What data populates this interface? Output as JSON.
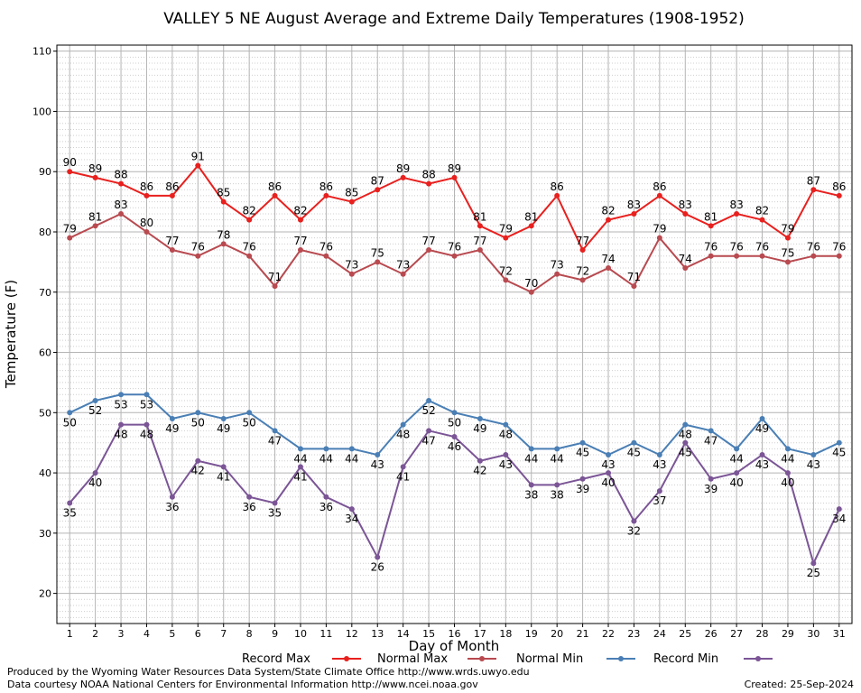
{
  "chart_data": {
    "type": "line",
    "title": "VALLEY 5 NE August Average and Extreme Daily Temperatures (1908-1952)",
    "xlabel": "Day of Month",
    "ylabel": "Temperature (F)",
    "xlim": [
      0.5,
      31.5
    ],
    "ylim": [
      15,
      111
    ],
    "yticks": [
      20,
      30,
      40,
      50,
      60,
      70,
      80,
      90,
      100,
      110
    ],
    "x": [
      1,
      2,
      3,
      4,
      5,
      6,
      7,
      8,
      9,
      10,
      11,
      12,
      13,
      14,
      15,
      16,
      17,
      18,
      19,
      20,
      21,
      22,
      23,
      24,
      25,
      26,
      27,
      28,
      29,
      30,
      31
    ],
    "grid": true,
    "legend_position": "bottom",
    "series": [
      {
        "name": "Record Max",
        "color": "#e8201e",
        "label_pos": "above",
        "values": [
          90,
          89,
          88,
          86,
          86,
          91,
          85,
          82,
          86,
          82,
          86,
          85,
          87,
          89,
          88,
          89,
          81,
          79,
          81,
          86,
          77,
          82,
          83,
          86,
          83,
          81,
          83,
          82,
          79,
          87,
          86
        ]
      },
      {
        "name": "Normal Max",
        "color": "#b84a50",
        "label_pos": "above",
        "values": [
          79,
          81,
          83,
          80,
          77,
          76,
          78,
          76,
          71,
          77,
          76,
          73,
          75,
          73,
          77,
          76,
          77,
          72,
          70,
          73,
          72,
          74,
          71,
          79,
          74,
          76,
          76,
          76,
          75,
          76,
          76
        ]
      },
      {
        "name": "Normal Min",
        "color": "#4a7fb5",
        "label_pos": "below",
        "values": [
          50,
          52,
          53,
          53,
          49,
          50,
          49,
          50,
          47,
          44,
          44,
          44,
          43,
          48,
          52,
          50,
          49,
          48,
          44,
          44,
          45,
          43,
          45,
          43,
          48,
          47,
          44,
          49,
          44,
          43,
          45
        ]
      },
      {
        "name": "Record Min",
        "color": "#7b5596",
        "label_pos": "below",
        "values": [
          35,
          40,
          48,
          48,
          36,
          42,
          41,
          36,
          35,
          41,
          36,
          34,
          26,
          41,
          47,
          46,
          42,
          43,
          38,
          38,
          39,
          40,
          32,
          37,
          45,
          39,
          40,
          43,
          40,
          25,
          34
        ]
      }
    ]
  },
  "footer": {
    "produced_by": "Produced by the Wyoming Water Resources Data System/State Climate Office http://www.wrds.uwyo.edu",
    "courtesy": "Data courtesy NOAA National Centers for Environmental Information http://www.ncei.noaa.gov",
    "created": "Created:  25-Sep-2024"
  }
}
